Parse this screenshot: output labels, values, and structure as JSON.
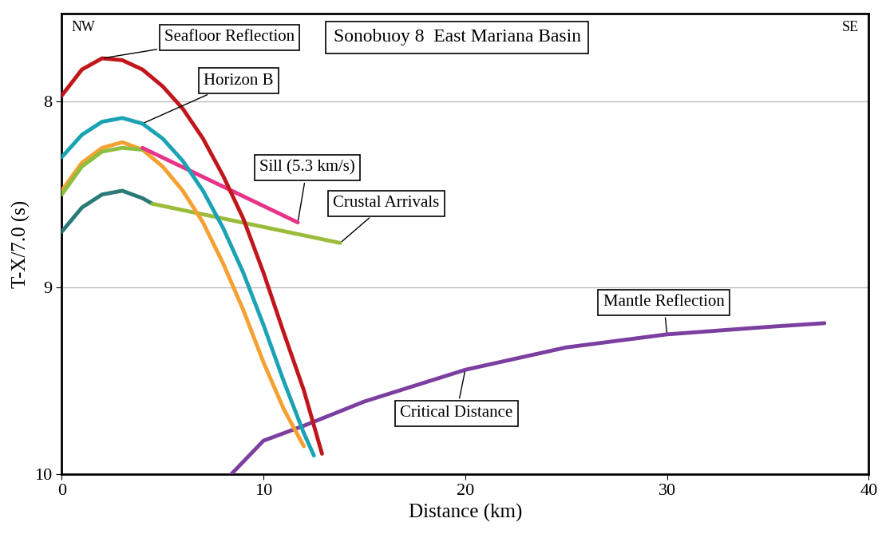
{
  "chart_data": {
    "type": "line",
    "title": "Sonobuoy 8  East Mariana Basin",
    "x_label": "Distance (km)",
    "y_label": "T-X/7.0 (s)",
    "corner_labels": [
      "NW",
      "SE"
    ],
    "xlim": [
      0,
      40
    ],
    "xticks": [
      0,
      10,
      20,
      30,
      40
    ],
    "ylim": [
      10,
      7.53
    ],
    "yticks": [
      8,
      9,
      10
    ],
    "grid": "y",
    "annotations": [
      "Critical Distance"
    ],
    "series": [
      {
        "name": "Mantle Reflection",
        "color": "#7b3fa0",
        "x": [
          8.4,
          10,
          12,
          15,
          20,
          25,
          30,
          35,
          37.8
        ],
        "values": [
          10.0,
          9.82,
          9.74,
          9.61,
          9.44,
          9.32,
          9.25,
          9.21,
          9.19
        ]
      },
      {
        "color": "#2a7a78",
        "x": [
          0,
          1,
          2,
          3,
          4,
          4.5
        ],
        "values": [
          8.7,
          8.57,
          8.5,
          8.48,
          8.52,
          8.55
        ]
      },
      {
        "name": "Crustal Arrivals",
        "color": "#9bbb3a",
        "x": [
          4.5,
          13.8
        ],
        "values": [
          8.55,
          8.76
        ]
      },
      {
        "color": "#f5a030",
        "x": [
          0,
          1,
          2,
          3,
          4,
          5,
          6,
          7,
          8,
          9,
          10,
          11,
          12
        ],
        "values": [
          8.48,
          8.33,
          8.25,
          8.22,
          8.26,
          8.35,
          8.48,
          8.65,
          8.87,
          9.12,
          9.4,
          9.65,
          9.85
        ]
      },
      {
        "color": "#8cbf3f",
        "x": [
          0,
          1,
          2,
          3,
          4
        ],
        "values": [
          8.5,
          8.35,
          8.27,
          8.25,
          8.26
        ]
      },
      {
        "name": "Sill (5.3 km/s)",
        "color": "#e8338a",
        "x": [
          4,
          11.7
        ],
        "values": [
          8.25,
          8.65
        ]
      },
      {
        "name": "Horizon B",
        "color": "#1aa3b5",
        "x": [
          0,
          1,
          2,
          3,
          4,
          5,
          6,
          7,
          8,
          9,
          10,
          11,
          12,
          12.5
        ],
        "values": [
          8.3,
          8.18,
          8.11,
          8.09,
          8.12,
          8.2,
          8.32,
          8.48,
          8.68,
          8.92,
          9.2,
          9.5,
          9.78,
          9.9
        ]
      },
      {
        "name": "Seafloor Reflection",
        "color": "#c0161c",
        "x": [
          0,
          1,
          2,
          3,
          4,
          5,
          6,
          7,
          8,
          9,
          10,
          11,
          12,
          12.9
        ],
        "values": [
          7.97,
          7.83,
          7.77,
          7.78,
          7.83,
          7.92,
          8.04,
          8.2,
          8.4,
          8.63,
          8.92,
          9.24,
          9.55,
          9.89
        ]
      }
    ]
  }
}
